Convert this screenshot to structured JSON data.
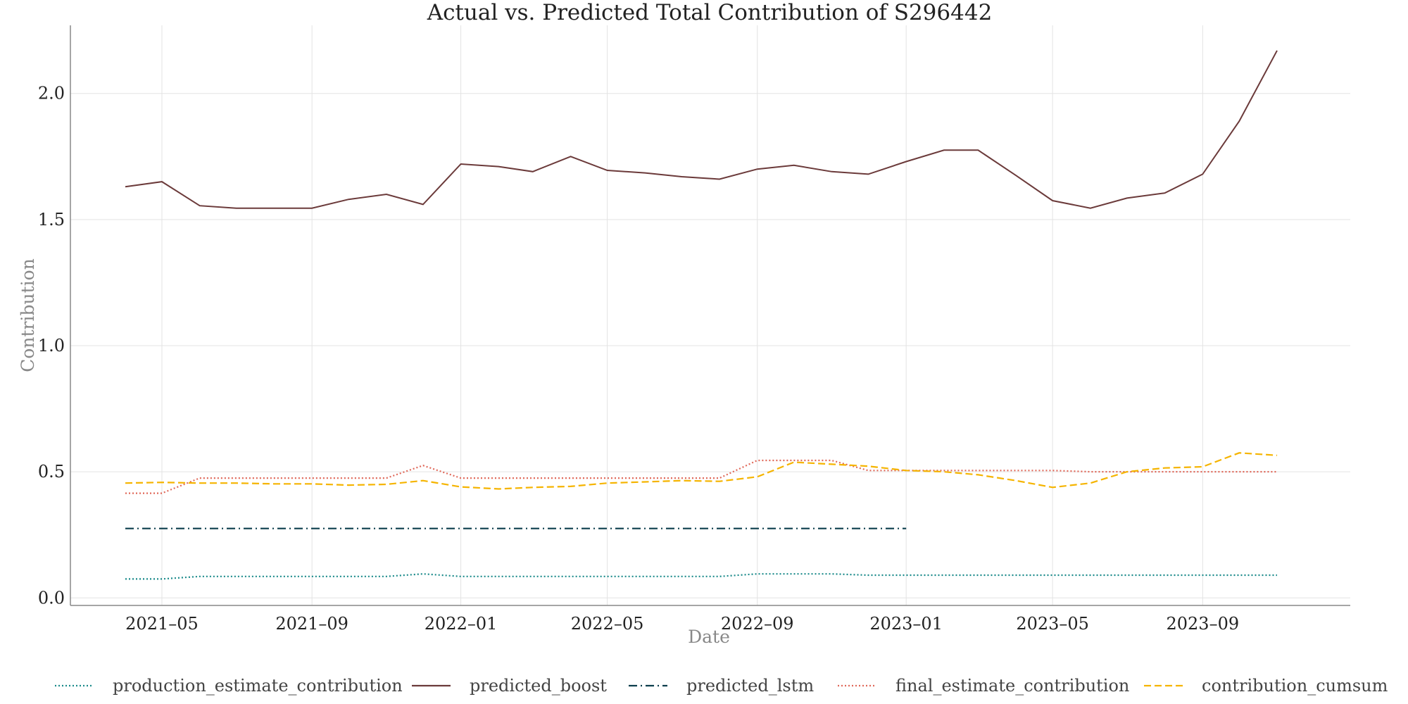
{
  "chart_data": {
    "type": "line",
    "title": "Actual vs. Predicted Total Contribution of S296442",
    "xlabel": "Date",
    "ylabel": "Contribution",
    "x": [
      "2021-04",
      "2021-05",
      "2021-06",
      "2021-07",
      "2021-08",
      "2021-09",
      "2021-10",
      "2021-11",
      "2021-12",
      "2022-01",
      "2022-02",
      "2022-03",
      "2022-04",
      "2022-05",
      "2022-06",
      "2022-07",
      "2022-08",
      "2022-09",
      "2022-10",
      "2022-11",
      "2022-12",
      "2023-01",
      "2023-02",
      "2023-03",
      "2023-04",
      "2023-05",
      "2023-06",
      "2023-07",
      "2023-08",
      "2023-09",
      "2023-10",
      "2023-11"
    ],
    "x_tick_labels": [
      "2021–05",
      "2021–09",
      "2022–01",
      "2022–05",
      "2022–09",
      "2023–01",
      "2023–05",
      "2023–09"
    ],
    "x_tick_months": [
      "2021-05",
      "2021-09",
      "2022-01",
      "2022-05",
      "2022-09",
      "2023-01",
      "2023-05",
      "2023-09"
    ],
    "y_ticks": [
      "0.0",
      "0.5",
      "1.0",
      "1.5",
      "2.0"
    ],
    "y_tick_values": [
      0,
      0.5,
      1.0,
      1.5,
      2.0
    ],
    "xlim": [
      "2021-02-15",
      "2023-12-31"
    ],
    "ylim": [
      -0.03,
      2.27
    ],
    "grid": true,
    "legend_position": "bottom",
    "series": [
      {
        "name": "production_estimate_contribution",
        "color": "#1a8a8a",
        "dash": "dotted",
        "values": [
          0.075,
          0.075,
          0.085,
          0.085,
          0.085,
          0.085,
          0.085,
          0.085,
          0.095,
          0.085,
          0.085,
          0.085,
          0.085,
          0.085,
          0.085,
          0.085,
          0.085,
          0.095,
          0.095,
          0.095,
          0.09,
          0.09,
          0.09,
          0.09,
          0.09,
          0.09,
          0.09,
          0.09,
          0.09,
          0.09,
          0.09,
          0.09
        ]
      },
      {
        "name": "predicted_boost",
        "color": "#6b3a3a",
        "dash": "solid",
        "values": [
          1.63,
          1.65,
          1.555,
          1.545,
          1.545,
          1.545,
          1.58,
          1.6,
          1.56,
          1.72,
          1.71,
          1.69,
          1.75,
          1.695,
          1.685,
          1.67,
          1.66,
          1.7,
          1.715,
          1.69,
          1.68,
          1.73,
          1.775,
          1.775,
          1.675,
          1.575,
          1.545,
          1.585,
          1.605,
          1.68,
          1.89,
          2.17
        ]
      },
      {
        "name": "predicted_lstm",
        "color": "#0b3d4c",
        "dash": "dashdot",
        "values": [
          0.275,
          0.275,
          0.275,
          0.275,
          0.275,
          0.275,
          0.275,
          0.275,
          0.275,
          0.275,
          0.275,
          0.275,
          0.275,
          0.275,
          0.275,
          0.275,
          0.275,
          0.275,
          0.275,
          0.275,
          0.275,
          0.275,
          null,
          null,
          null,
          null,
          null,
          null,
          null,
          null,
          null,
          null
        ]
      },
      {
        "name": "final_estimate_contribution",
        "color": "#e0695a",
        "dash": "dotted",
        "values": [
          0.415,
          0.415,
          0.475,
          0.475,
          0.475,
          0.475,
          0.475,
          0.475,
          0.525,
          0.475,
          0.475,
          0.475,
          0.475,
          0.475,
          0.475,
          0.475,
          0.475,
          0.545,
          0.545,
          0.545,
          0.505,
          0.505,
          0.505,
          0.505,
          0.505,
          0.505,
          0.5,
          0.5,
          0.5,
          0.5,
          0.5,
          0.5
        ]
      },
      {
        "name": "contribution_cumsum",
        "color": "#f5b400",
        "dash": "dashed",
        "values": [
          0.455,
          0.458,
          0.455,
          0.455,
          0.452,
          0.452,
          0.447,
          0.45,
          0.465,
          0.44,
          0.432,
          0.438,
          0.442,
          0.455,
          0.46,
          0.465,
          0.462,
          0.48,
          0.538,
          0.53,
          0.522,
          0.505,
          0.5,
          0.488,
          0.465,
          0.438,
          0.455,
          0.5,
          0.515,
          0.52,
          0.575,
          0.565
        ]
      }
    ]
  }
}
